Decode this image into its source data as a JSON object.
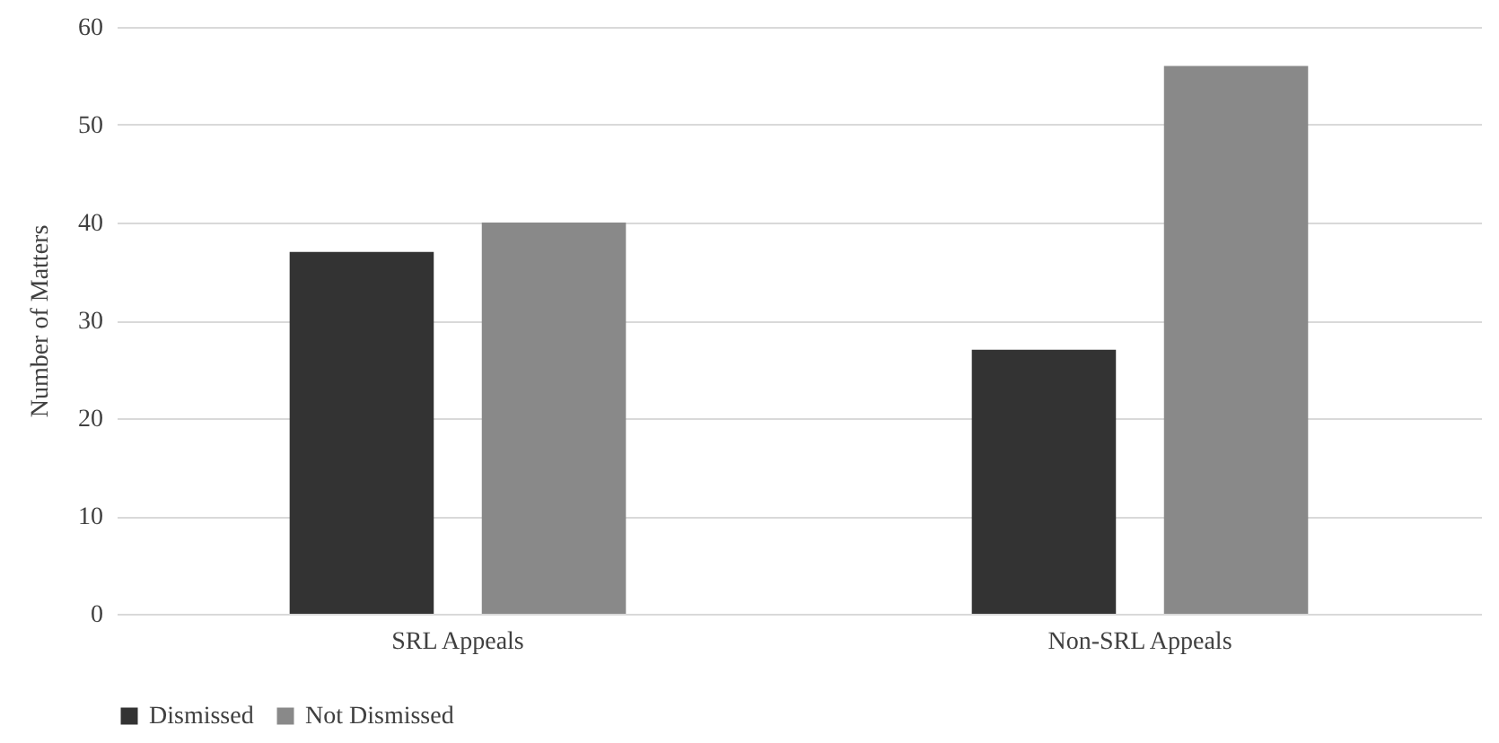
{
  "chart_data": {
    "type": "bar",
    "ylabel": "Number of Matters",
    "categories": [
      "SRL Appeals",
      "Non-SRL Appeals"
    ],
    "series": [
      {
        "name": "Dismissed",
        "color": "#333333",
        "values": [
          37,
          27
        ]
      },
      {
        "name": "Not Dismissed",
        "color": "#898989",
        "values": [
          40,
          56
        ]
      }
    ],
    "ylim": [
      0,
      60
    ],
    "yticks": [
      0,
      10,
      20,
      30,
      40,
      50,
      60
    ],
    "grid": "y",
    "legend": "bottom"
  }
}
